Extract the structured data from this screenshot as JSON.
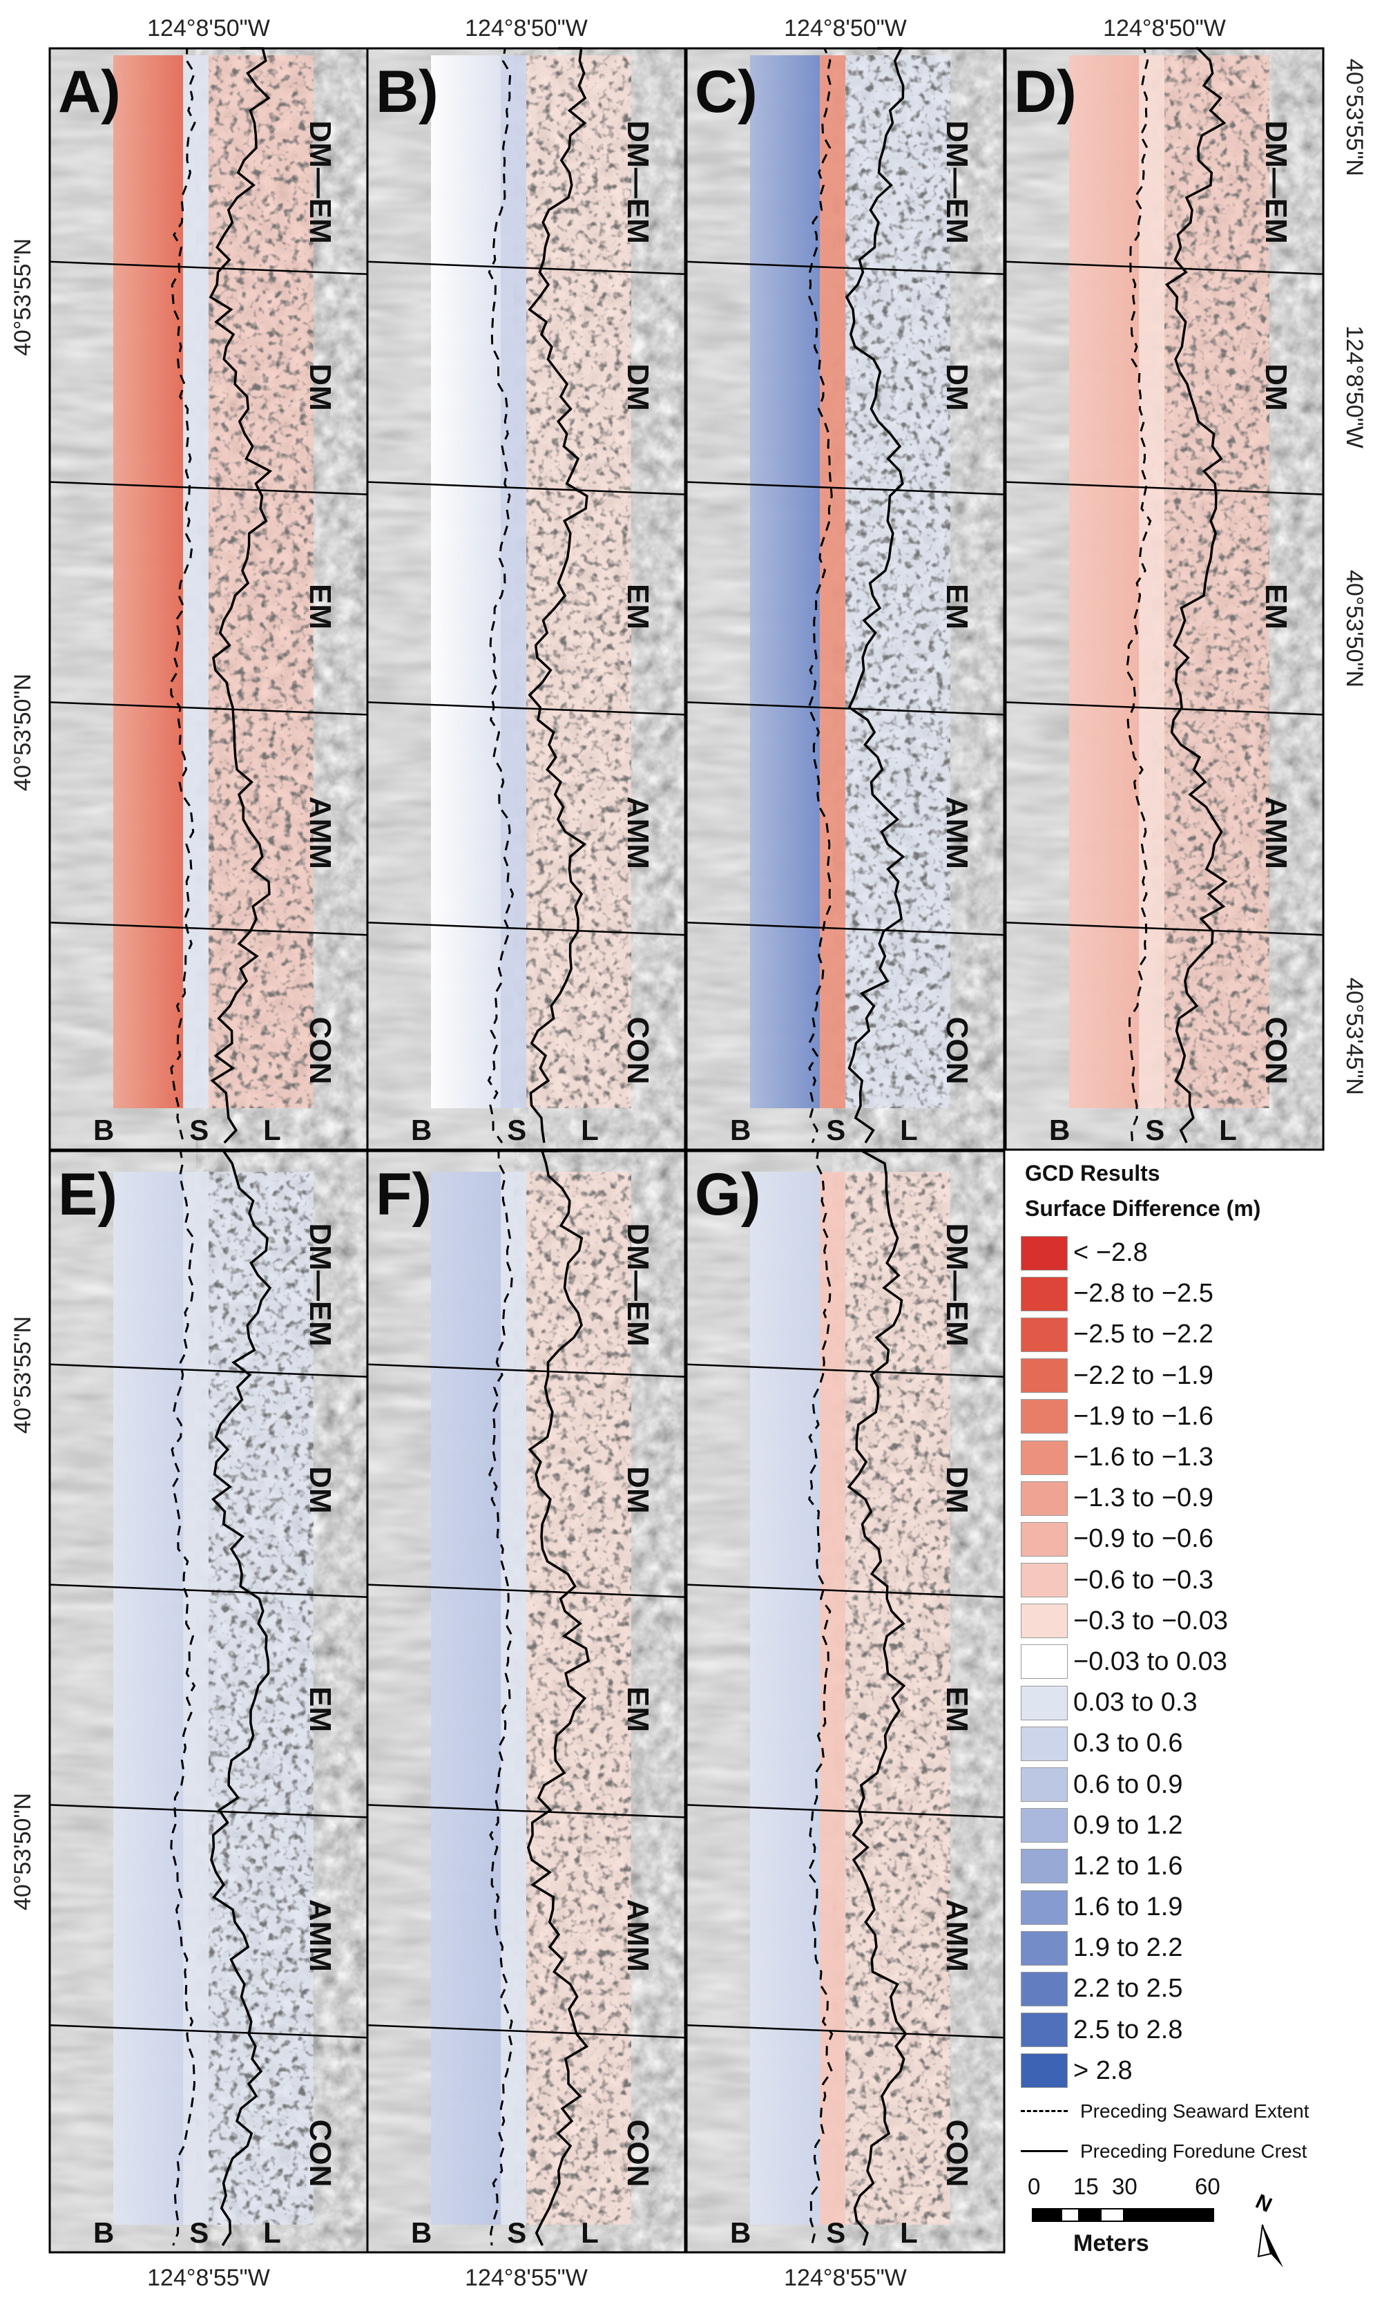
{
  "figure": {
    "panels": [
      {
        "id": "A",
        "label": "A)",
        "coords": {
          "top": "124°8'50\"W",
          "left": "40°53'55\"N",
          "left2": "40°53'50\"N",
          "bottom": ""
        }
      },
      {
        "id": "B",
        "label": "B)",
        "coords": {
          "top": "124°8'50\"W",
          "left": "",
          "left2": "",
          "bottom": ""
        }
      },
      {
        "id": "C",
        "label": "C)",
        "coords": {
          "top": "124°8'50\"W",
          "left": "",
          "left2": "",
          "bottom": ""
        }
      },
      {
        "id": "D",
        "label": "D)",
        "coords": {
          "top": "124°8'50\"W",
          "right_top": "40°53'55\"N",
          "right_mid": "124°8'50\"W",
          "right_mid2": "40°53'50\"N",
          "right_bottom": "40°53'45\"N"
        }
      },
      {
        "id": "E",
        "label": "E)",
        "coords": {
          "left": "40°53'55\"N",
          "left2": "40°53'50\"N",
          "bottom": "124°8'55\"W"
        }
      },
      {
        "id": "F",
        "label": "F)",
        "coords": {
          "bottom": "124°8'55\"W"
        }
      },
      {
        "id": "G",
        "label": "G)",
        "coords": {
          "bottom": "124°8'55\"W"
        }
      }
    ],
    "zones": [
      "DM—EM",
      "DM",
      "EM",
      "AMM",
      "CON"
    ],
    "bsl": [
      "B",
      "S",
      "L"
    ]
  },
  "legend": {
    "title": "GCD Results",
    "subtitle": "Surface Difference (m)",
    "classes": [
      {
        "label": "< −2.8",
        "color": "#d7302d"
      },
      {
        "label": "−2.8 to −2.5",
        "color": "#dc4538"
      },
      {
        "label": "−2.5 to −2.2",
        "color": "#e15a47"
      },
      {
        "label": "−2.2 to −1.9",
        "color": "#e46c57"
      },
      {
        "label": "−1.9 to −1.6",
        "color": "#e87e68"
      },
      {
        "label": "−1.6 to −1.3",
        "color": "#ec917d"
      },
      {
        "label": "−1.3 to −0.9",
        "color": "#efa392"
      },
      {
        "label": "−0.9 to −0.6",
        "color": "#f2b5a7"
      },
      {
        "label": "−0.6 to −0.3",
        "color": "#f6c8bd"
      },
      {
        "label": "−0.3 to −0.03",
        "color": "#f9dcd4"
      },
      {
        "label": "−0.03 to 0.03",
        "color": "#ffffff"
      },
      {
        "label": "0.03 to 0.3",
        "color": "#dfe4f1"
      },
      {
        "label": "0.3 to 0.6",
        "color": "#cdd5eb"
      },
      {
        "label": "0.6 to 0.9",
        "color": "#bcc7e4"
      },
      {
        "label": "0.9 to 1.2",
        "color": "#aab8dd"
      },
      {
        "label": "1.2 to 1.6",
        "color": "#98a9d6"
      },
      {
        "label": "1.6 to 1.9",
        "color": "#869bcf"
      },
      {
        "label": "1.9 to 2.2",
        "color": "#748cc8"
      },
      {
        "label": "2.2 to 2.5",
        "color": "#627ec1"
      },
      {
        "label": "2.5 to 2.8",
        "color": "#5070bb"
      },
      {
        "label": "> 2.8",
        "color": "#3d63b4"
      }
    ],
    "lines": {
      "seaward": "Preceding Seaward Extent",
      "crest": "Preceding Foredune Crest"
    }
  },
  "scale": {
    "ticks": [
      "0",
      "15",
      "30",
      "60"
    ],
    "units": "Meters",
    "north": "N"
  }
}
